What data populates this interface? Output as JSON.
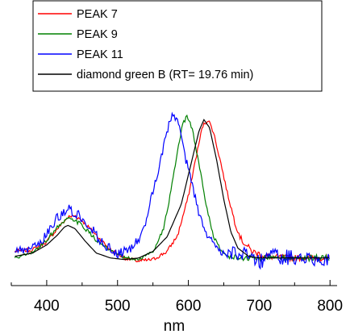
{
  "chart_data": {
    "type": "line",
    "title": "",
    "xlabel": "nm",
    "ylabel": "",
    "xlim": [
      350,
      810
    ],
    "ylim": [
      -0.15,
      1.05
    ],
    "x_ticks": [
      400,
      500,
      600,
      700,
      800
    ],
    "x_tick_labels": [
      "400",
      "500",
      "600",
      "700",
      "800"
    ],
    "grid": false,
    "legend_position": "top",
    "series": [
      {
        "name": "PEAK 7",
        "color": "#ff0000",
        "noise": 0.012,
        "x": [
          355,
          380,
          400,
          415,
          430,
          440,
          450,
          470,
          490,
          510,
          530,
          550,
          570,
          585,
          600,
          610,
          620,
          628,
          635,
          645,
          655,
          665,
          675,
          690,
          710,
          740,
          770,
          800
        ],
        "y": [
          0.06,
          0.07,
          0.12,
          0.2,
          0.27,
          0.28,
          0.25,
          0.16,
          0.07,
          0.02,
          0.0,
          0.01,
          0.06,
          0.16,
          0.4,
          0.62,
          0.83,
          0.87,
          0.8,
          0.62,
          0.42,
          0.25,
          0.13,
          0.06,
          0.03,
          0.02,
          0.02,
          0.02
        ]
      },
      {
        "name": "PEAK 9",
        "color": "#008000",
        "noise": 0.012,
        "x": [
          355,
          380,
          400,
          415,
          430,
          440,
          450,
          470,
          490,
          510,
          530,
          550,
          565,
          575,
          585,
          592,
          598,
          605,
          615,
          625,
          635,
          645,
          655,
          665,
          680,
          700,
          740,
          770,
          800
        ],
        "y": [
          0.02,
          0.05,
          0.13,
          0.21,
          0.26,
          0.25,
          0.22,
          0.13,
          0.06,
          0.02,
          0.01,
          0.06,
          0.2,
          0.42,
          0.68,
          0.84,
          0.89,
          0.82,
          0.6,
          0.35,
          0.16,
          0.07,
          0.03,
          0.02,
          0.02,
          0.02,
          0.02,
          0.02,
          0.02
        ]
      },
      {
        "name": "PEAK 11",
        "color": "#0000ff",
        "noise": 0.03,
        "x": [
          355,
          370,
          385,
          400,
          415,
          430,
          440,
          450,
          465,
          480,
          500,
          515,
          530,
          540,
          550,
          560,
          570,
          578,
          585,
          593,
          600,
          608,
          615,
          625,
          640,
          655,
          670,
          690,
          700,
          720,
          750,
          780,
          800
        ],
        "y": [
          0.06,
          0.06,
          0.09,
          0.16,
          0.27,
          0.32,
          0.3,
          0.27,
          0.19,
          0.1,
          0.05,
          0.06,
          0.13,
          0.25,
          0.42,
          0.6,
          0.8,
          0.9,
          0.85,
          0.7,
          0.55,
          0.42,
          0.3,
          0.16,
          0.08,
          0.05,
          0.04,
          0.04,
          0.0,
          0.03,
          0.02,
          0.02,
          0.02
        ]
      },
      {
        "name": "diamond green B (RT= 19.76 min)",
        "color": "#000000",
        "noise": 0.0,
        "x": [
          355,
          380,
          400,
          415,
          425,
          430,
          440,
          455,
          470,
          490,
          510,
          530,
          550,
          570,
          590,
          605,
          615,
          622,
          630,
          640,
          650,
          660,
          670,
          685,
          700,
          730,
          760,
          800
        ],
        "y": [
          0.03,
          0.05,
          0.1,
          0.16,
          0.21,
          0.22,
          0.2,
          0.12,
          0.05,
          0.02,
          0.01,
          0.02,
          0.06,
          0.15,
          0.35,
          0.62,
          0.8,
          0.87,
          0.82,
          0.62,
          0.38,
          0.18,
          0.08,
          0.03,
          0.02,
          0.02,
          0.02,
          0.02
        ]
      }
    ]
  }
}
